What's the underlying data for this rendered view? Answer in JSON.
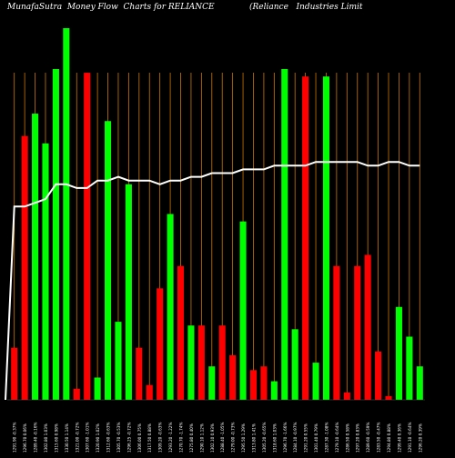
{
  "header": {
    "title_left": "MunafaSutra  Money Flow  Charts for RELIANCE",
    "title_right": "(Reliance   Industries Limit"
  },
  "colors": {
    "background": "#000000",
    "up_bar": "#00ff00",
    "down_bar": "#ff0000",
    "grid": "#cc7700",
    "line": "#ffffff",
    "text": "#ffffff"
  },
  "chart_data": {
    "type": "bar",
    "title": "MunafaSutra  Money Flow  Charts for RELIANCE",
    "subtitle": "(Reliance   Industries Limit",
    "ylim": [
      0,
      100
    ],
    "grid": "vertical",
    "x_labels": [
      "1291.90 -0.37%",
      "1296.70 0.06%",
      "1289.40 -0.16%",
      "1302.80 1.03%",
      "1315.60 0.98%",
      "1330.50 1.14%",
      "1321.00 -0.72%",
      "1307.60 -1.01%",
      "1320.90 1.02%",
      "1312.60 -0.63%",
      "1305.70 -0.53%",
      "1296.25 -0.72%",
      "1306.00 0.75%",
      "1317.50 0.88%",
      "1309.20 -0.63%",
      "1293.20 -1.22%",
      "1270.70 -1.74%",
      "1275.80 0.40%",
      "1290.10 1.12%",
      "1302.10 0.93%",
      "1288.40 -1.05%",
      "1279.00 -0.73%",
      "1295.50 1.29%",
      "1313.80 1.41%",
      "1305.20 -0.65%",
      "1318.60 1.03%",
      "1296.70 -1.66%",
      "1284.10 -0.97%",
      "1291.20 0.55%",
      "1301.40 0.79%",
      "1287.30 -1.08%",
      "1279.10 -0.64%",
      "1286.50 0.58%",
      "1297.20 0.83%",
      "1289.60 -0.59%",
      "1283.50 -0.47%",
      "1294.80 0.88%",
      "1299.40 0.36%",
      "1291.10 -0.64%",
      "1296.20 0.39%"
    ],
    "bar_values": [
      14,
      71,
      77,
      69,
      89,
      100,
      3,
      88,
      6,
      75,
      21,
      58,
      14,
      4,
      30,
      50,
      36,
      20,
      20,
      9,
      20,
      12,
      48,
      8,
      9,
      5,
      89,
      19,
      87,
      10,
      87,
      36,
      2,
      36,
      39,
      13,
      1,
      25,
      17,
      9
    ],
    "bar_colors": [
      "red",
      "red",
      "green",
      "green",
      "green",
      "green",
      "red",
      "red",
      "green",
      "green",
      "green",
      "green",
      "red",
      "red",
      "red",
      "green",
      "red",
      "green",
      "red",
      "green",
      "red",
      "red",
      "green",
      "red",
      "red",
      "green",
      "green",
      "green",
      "red",
      "green",
      "green",
      "red",
      "red",
      "red",
      "red",
      "red",
      "red",
      "green",
      "green",
      "green"
    ],
    "money_flow_line": [
      52,
      52,
      53,
      54,
      58,
      58,
      57,
      57,
      59,
      59,
      60,
      59,
      59,
      59,
      58,
      59,
      59,
      60,
      60,
      61,
      61,
      61,
      62,
      62,
      62,
      63,
      63,
      63,
      63,
      64,
      64,
      64,
      64,
      64,
      63,
      63,
      64,
      64,
      63,
      63
    ]
  }
}
